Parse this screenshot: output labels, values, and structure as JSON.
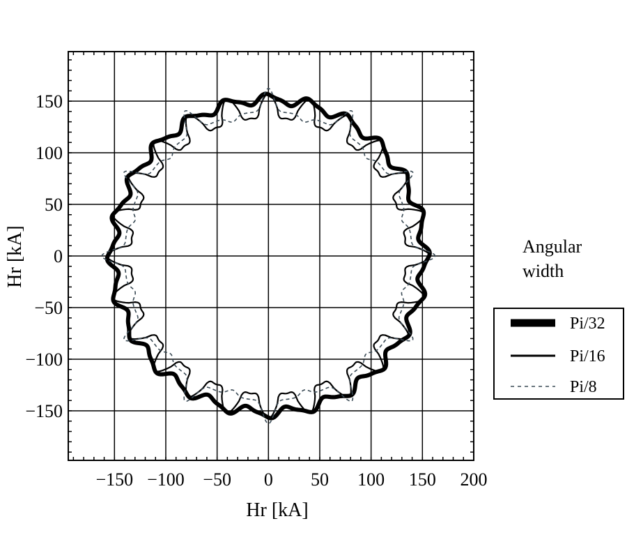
{
  "chart_data": {
    "type": "line",
    "subtype": "parametric-closed-curves",
    "xlabel": "Hr [kA]",
    "ylabel": "Hr [kA]",
    "xlim": [
      -195,
      200
    ],
    "ylim": [
      -198,
      198
    ],
    "xticks": [
      -150,
      -100,
      -50,
      0,
      50,
      100,
      150,
      200
    ],
    "yticks": [
      150,
      100,
      50,
      0,
      -50,
      -100,
      -150
    ],
    "xtick_labels": [
      "−150",
      "−100",
      "−50",
      "0",
      "50",
      "100",
      "150",
      "200"
    ],
    "ytick_labels": [
      "150",
      "100",
      "50",
      "0",
      "−50",
      "−100",
      "−150"
    ],
    "grid": true,
    "legend": {
      "title_lines": [
        "Angular",
        "width"
      ],
      "placement": "right"
    },
    "series": [
      {
        "name": "Pi/32",
        "style": "thick-solid",
        "color": "#000000",
        "base_radius": 152,
        "modulation": 0.03,
        "lobes": 24,
        "shape": "round",
        "points": 720
      },
      {
        "name": "Pi/16",
        "style": "solid",
        "color": "#000000",
        "base_radius": 143,
        "modulation": 0.08,
        "lobes": 24,
        "shape": "sharp",
        "points": 720
      },
      {
        "name": "Pi/8",
        "style": "dashed",
        "color": "#3a4a55",
        "base_radius": 140,
        "modulation": 0.16,
        "lobes": 12,
        "shape": "spike",
        "points": 720
      }
    ]
  }
}
